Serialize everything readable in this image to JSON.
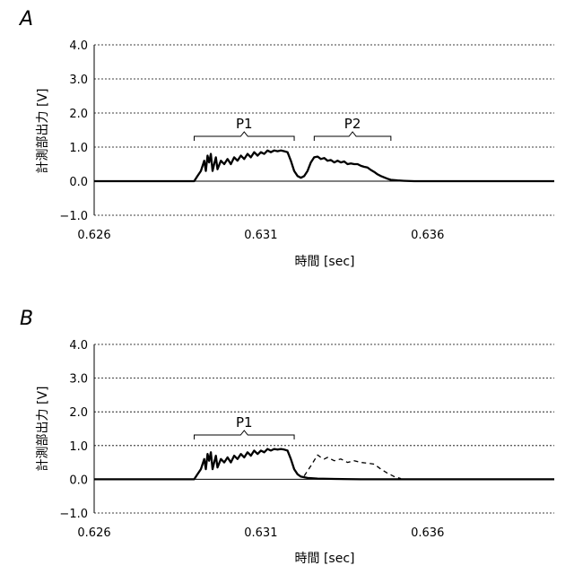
{
  "chart_data": [
    {
      "panel": "A",
      "type": "line",
      "xlabel": "時間 [sec]",
      "ylabel": "計測部出力 [V]",
      "xlim": [
        0.626,
        0.6398
      ],
      "ylim": [
        -1.0,
        4.0
      ],
      "xticks": [
        "0.626",
        "0.631",
        "0.636"
      ],
      "yticks": [
        "−1.0",
        "0.0",
        "1.0",
        "2.0",
        "3.0",
        "4.0"
      ],
      "grid": "horizontal dotted",
      "annotations": [
        {
          "label": "P1",
          "x_start": 0.629,
          "x_end": 0.632
        },
        {
          "label": "P2",
          "x_start": 0.6326,
          "x_end": 0.6349
        }
      ],
      "series": [
        {
          "style": "solid",
          "x": [
            0.626,
            0.6275,
            0.629,
            0.6291,
            0.6292,
            0.6293,
            0.62935,
            0.6294,
            0.62945,
            0.6295,
            0.62955,
            0.6296,
            0.62965,
            0.6297,
            0.6298,
            0.6299,
            0.63,
            0.6301,
            0.6302,
            0.6303,
            0.6304,
            0.6305,
            0.6306,
            0.6307,
            0.6308,
            0.6309,
            0.631,
            0.6311,
            0.6312,
            0.6313,
            0.6314,
            0.6315,
            0.6316,
            0.6317,
            0.6318,
            0.6319,
            0.632,
            0.6321,
            0.6322,
            0.6323,
            0.6324,
            0.6325,
            0.6326,
            0.6327,
            0.6328,
            0.6329,
            0.633,
            0.6331,
            0.6332,
            0.6333,
            0.6334,
            0.6335,
            0.6336,
            0.6337,
            0.6338,
            0.6339,
            0.634,
            0.6341,
            0.6342,
            0.6343,
            0.6344,
            0.6345,
            0.6346,
            0.6347,
            0.6348,
            0.6349,
            0.6351,
            0.6353,
            0.6356,
            0.636,
            0.6366,
            0.638,
            0.6398
          ],
          "y": [
            0.0,
            0.0,
            0.0,
            0.15,
            0.3,
            0.6,
            0.3,
            0.75,
            0.55,
            0.8,
            0.3,
            0.5,
            0.7,
            0.35,
            0.6,
            0.5,
            0.65,
            0.5,
            0.7,
            0.6,
            0.75,
            0.65,
            0.8,
            0.7,
            0.85,
            0.75,
            0.85,
            0.8,
            0.9,
            0.85,
            0.9,
            0.88,
            0.9,
            0.88,
            0.85,
            0.6,
            0.3,
            0.15,
            0.1,
            0.15,
            0.3,
            0.55,
            0.7,
            0.72,
            0.65,
            0.68,
            0.6,
            0.62,
            0.55,
            0.6,
            0.55,
            0.58,
            0.5,
            0.52,
            0.5,
            0.5,
            0.45,
            0.42,
            0.4,
            0.33,
            0.27,
            0.2,
            0.15,
            0.11,
            0.07,
            0.04,
            0.02,
            0.01,
            0.0,
            0.0,
            0.0,
            0.0,
            0.0
          ]
        }
      ]
    },
    {
      "panel": "B",
      "type": "line",
      "xlabel": "時間 [sec]",
      "ylabel": "計測部出力 [V]",
      "xlim": [
        0.626,
        0.6398
      ],
      "ylim": [
        -1.0,
        4.0
      ],
      "xticks": [
        "0.626",
        "0.631",
        "0.636"
      ],
      "yticks": [
        "−1.0",
        "0.0",
        "1.0",
        "2.0",
        "3.0",
        "4.0"
      ],
      "grid": "horizontal dotted",
      "annotations": [
        {
          "label": "P1",
          "x_start": 0.629,
          "x_end": 0.632
        }
      ],
      "series": [
        {
          "style": "solid",
          "x": [
            0.626,
            0.6275,
            0.629,
            0.6291,
            0.6292,
            0.6293,
            0.62935,
            0.6294,
            0.62945,
            0.6295,
            0.62955,
            0.6296,
            0.62965,
            0.6297,
            0.6298,
            0.6299,
            0.63,
            0.6301,
            0.6302,
            0.6303,
            0.6304,
            0.6305,
            0.6306,
            0.6307,
            0.6308,
            0.6309,
            0.631,
            0.6311,
            0.6312,
            0.6313,
            0.6314,
            0.6315,
            0.6316,
            0.6317,
            0.6318,
            0.6319,
            0.632,
            0.6321,
            0.6322,
            0.6324,
            0.6327,
            0.6332,
            0.634,
            0.636,
            0.6398
          ],
          "y": [
            0.0,
            0.0,
            0.0,
            0.15,
            0.3,
            0.6,
            0.3,
            0.75,
            0.55,
            0.8,
            0.3,
            0.5,
            0.7,
            0.35,
            0.6,
            0.5,
            0.65,
            0.5,
            0.7,
            0.6,
            0.75,
            0.65,
            0.8,
            0.7,
            0.85,
            0.75,
            0.85,
            0.8,
            0.9,
            0.85,
            0.9,
            0.88,
            0.9,
            0.88,
            0.85,
            0.6,
            0.3,
            0.15,
            0.08,
            0.04,
            0.02,
            0.01,
            0.0,
            0.0,
            0.0
          ]
        },
        {
          "style": "dashed",
          "x": [
            0.6323,
            0.6325,
            0.6327,
            0.6328,
            0.6329,
            0.633,
            0.6332,
            0.6334,
            0.6336,
            0.6338,
            0.634,
            0.6342,
            0.6344,
            0.6346,
            0.6348,
            0.635,
            0.6352
          ],
          "y": [
            0.1,
            0.4,
            0.72,
            0.65,
            0.6,
            0.65,
            0.55,
            0.6,
            0.5,
            0.55,
            0.5,
            0.48,
            0.45,
            0.3,
            0.18,
            0.08,
            0.02
          ]
        }
      ]
    }
  ]
}
